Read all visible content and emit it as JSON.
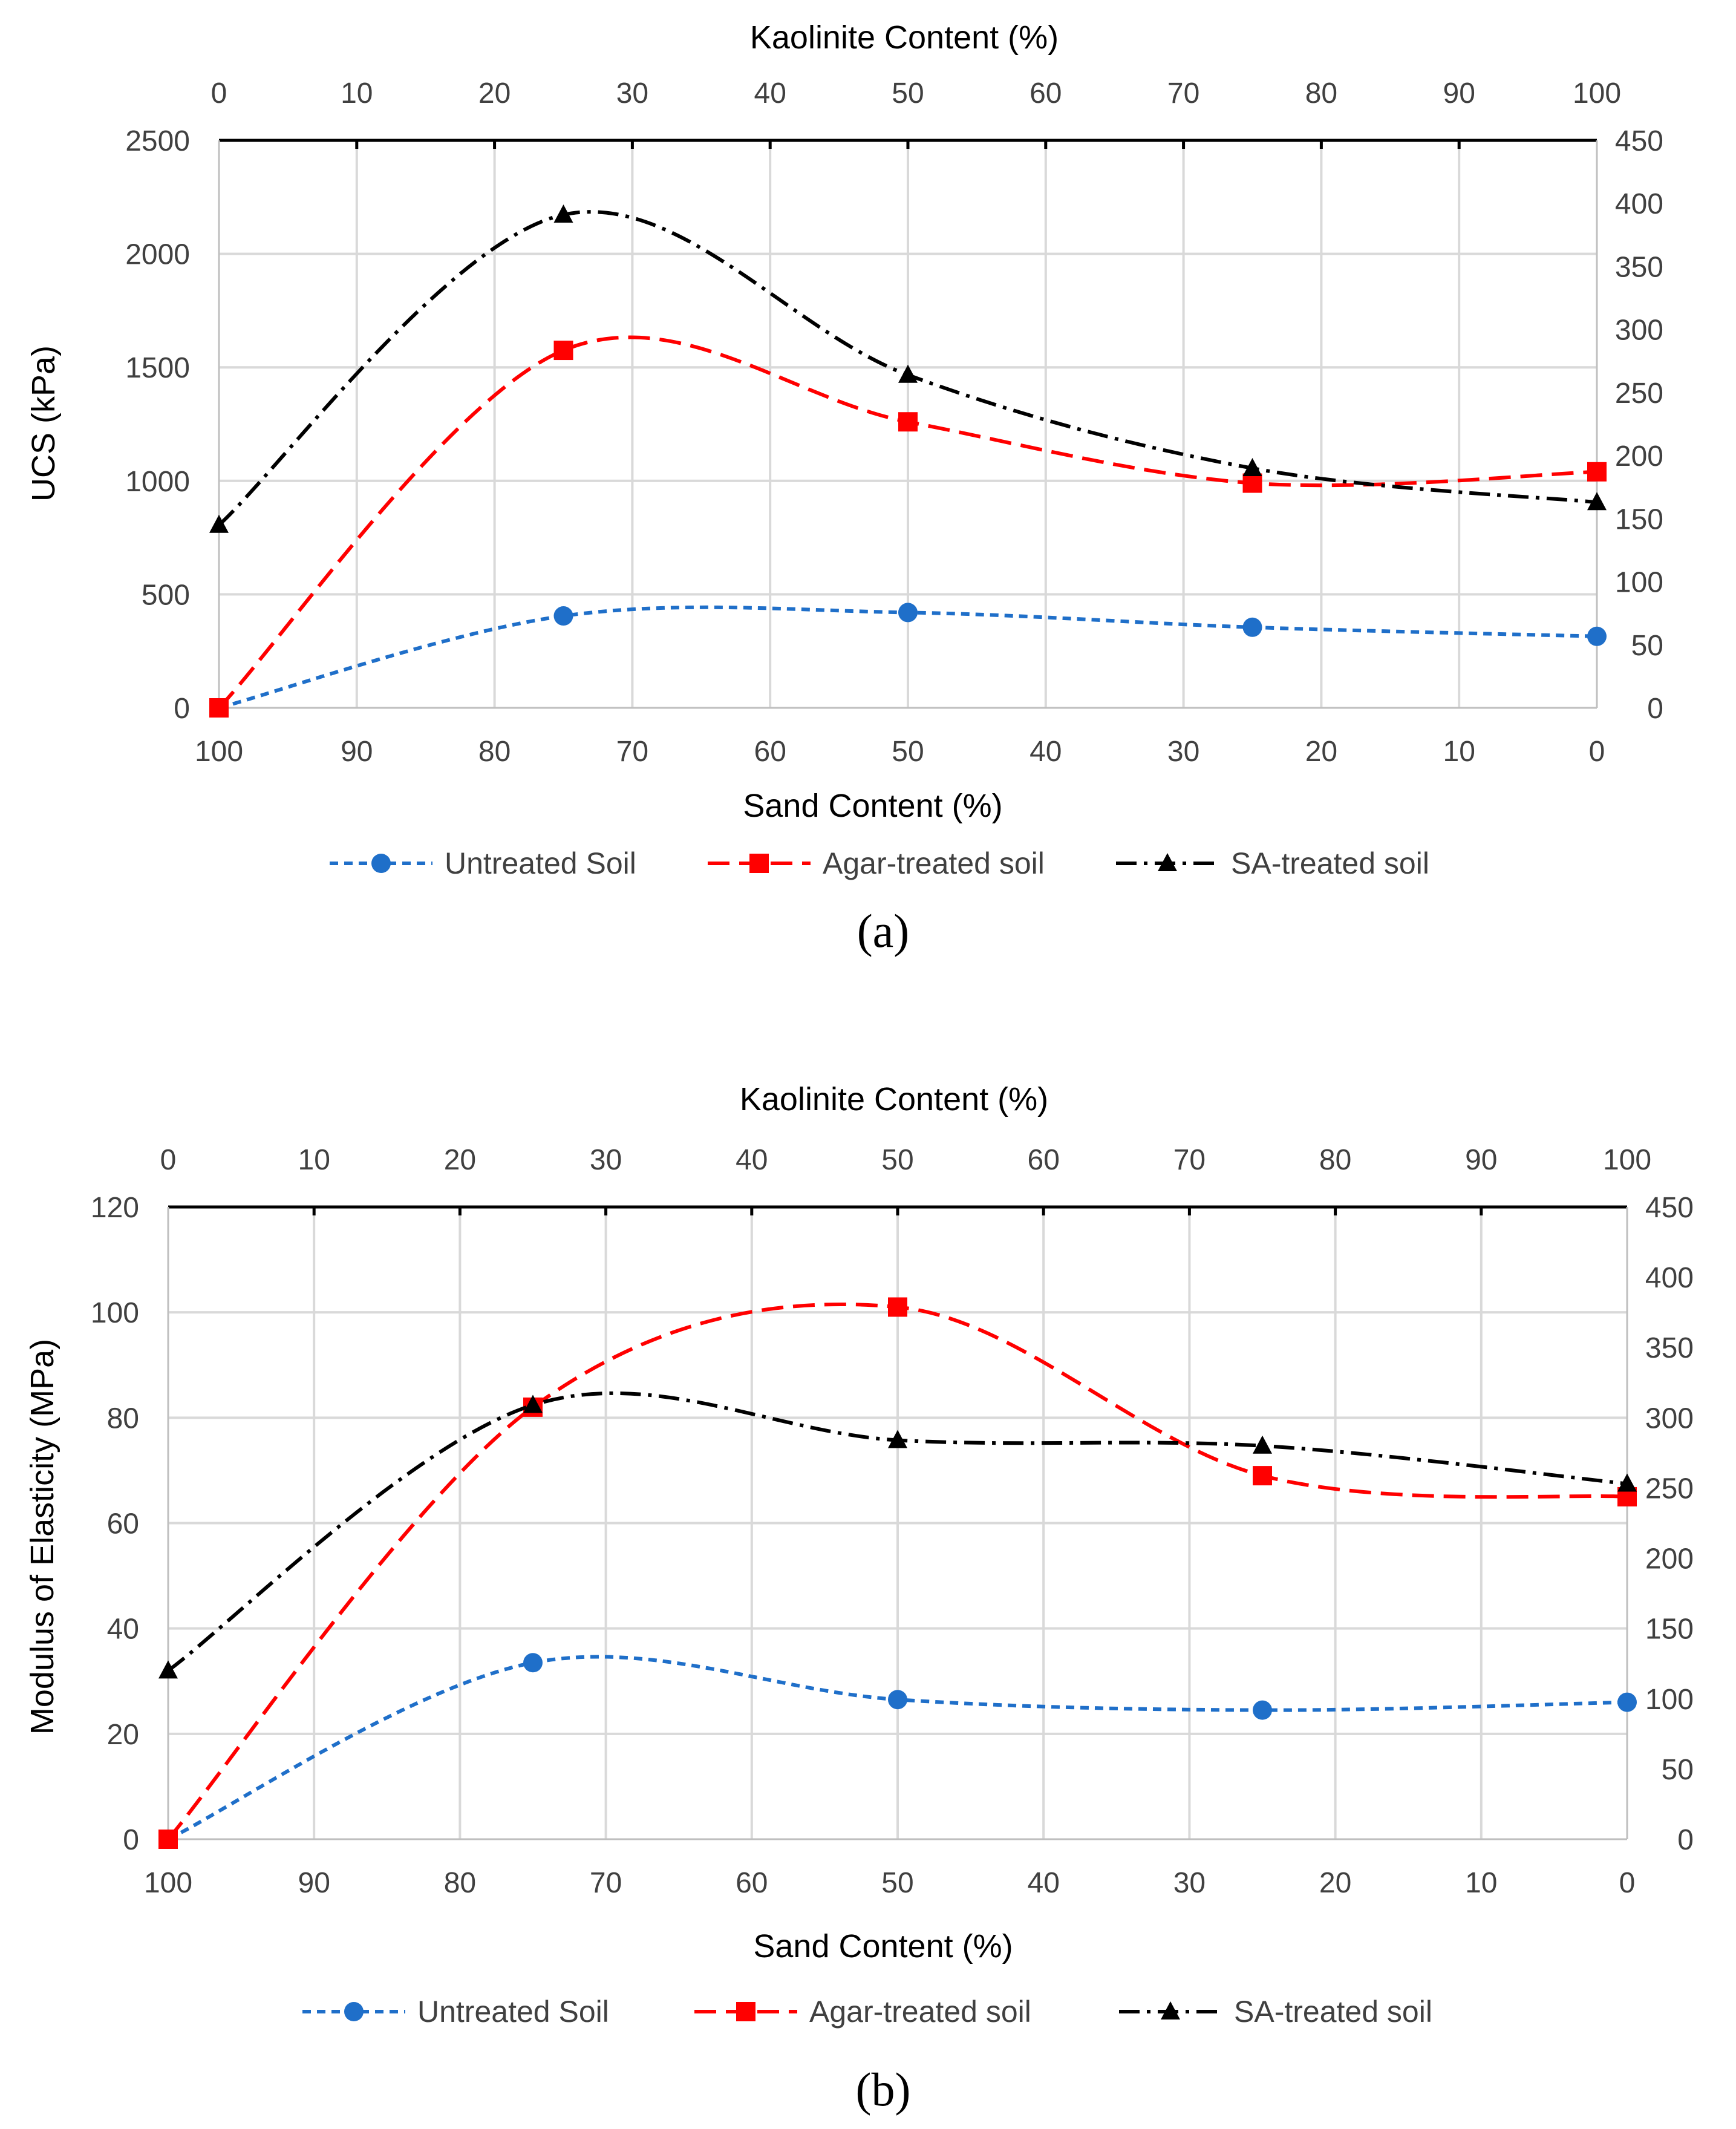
{
  "colors": {
    "untreated": "#1f6fc9",
    "agar": "#ff0000",
    "sa": "#000000"
  },
  "chart_data": [
    {
      "type": "line",
      "caption": "(a)",
      "ylabel": "UCS (kPa)",
      "xlabel": "Sand Content (%)",
      "x2label": "Kaolinite Content (%)",
      "ylim": [
        0,
        2500
      ],
      "y_ticks": [
        "0",
        "500",
        "1000",
        "1500",
        "2000",
        "2500"
      ],
      "y2lim": [
        0,
        450
      ],
      "y2_ticks": [
        "0",
        "50",
        "100",
        "150",
        "200",
        "250",
        "300",
        "350",
        "400",
        "450"
      ],
      "x_ticks": [
        "100",
        "90",
        "80",
        "70",
        "60",
        "50",
        "40",
        "30",
        "20",
        "10",
        "0"
      ],
      "x2_ticks": [
        "0",
        "10",
        "20",
        "30",
        "40",
        "50",
        "60",
        "70",
        "80",
        "90",
        "100"
      ],
      "x_kaolinite": [
        0,
        25,
        50,
        75,
        100
      ],
      "series": [
        {
          "name": "Untreated Soil",
          "key": "untreated",
          "marker": "circle",
          "axis": "left",
          "values": [
            0,
            405,
            420,
            355,
            315
          ]
        },
        {
          "name": "Agar-treated soil",
          "key": "agar",
          "marker": "square",
          "axis": "left",
          "values": [
            0,
            1575,
            1260,
            990,
            1040
          ]
        },
        {
          "name": "SA-treated soil",
          "key": "sa",
          "marker": "triangle",
          "axis": "right",
          "values": [
            145,
            391,
            264,
            190,
            163
          ]
        }
      ]
    },
    {
      "type": "line",
      "caption": "(b)",
      "ylabel": "Modulus of Elasticity (MPa)",
      "xlabel": "Sand Content (%)",
      "x2label": "Kaolinite Content (%)",
      "ylim": [
        0,
        120
      ],
      "y_ticks": [
        "0",
        "20",
        "40",
        "60",
        "80",
        "100",
        "120"
      ],
      "y2lim": [
        0,
        450
      ],
      "y2_ticks": [
        "0",
        "50",
        "100",
        "150",
        "200",
        "250",
        "300",
        "350",
        "400",
        "450"
      ],
      "x_ticks": [
        "100",
        "90",
        "80",
        "70",
        "60",
        "50",
        "40",
        "30",
        "20",
        "10",
        "0"
      ],
      "x2_ticks": [
        "0",
        "10",
        "20",
        "30",
        "40",
        "50",
        "60",
        "70",
        "80",
        "90",
        "100"
      ],
      "x_kaolinite": [
        0,
        25,
        50,
        75,
        100
      ],
      "series": [
        {
          "name": "Untreated Soil",
          "key": "untreated",
          "marker": "circle",
          "axis": "left",
          "values": [
            0,
            33.5,
            26.5,
            24.5,
            26
          ]
        },
        {
          "name": "Agar-treated soil",
          "key": "agar",
          "marker": "square",
          "axis": "left",
          "values": [
            0,
            82,
            101,
            69,
            65
          ]
        },
        {
          "name": "SA-treated soil",
          "key": "sa",
          "marker": "triangle",
          "axis": "right",
          "values": [
            120,
            309,
            284,
            280,
            253
          ]
        }
      ]
    }
  ]
}
